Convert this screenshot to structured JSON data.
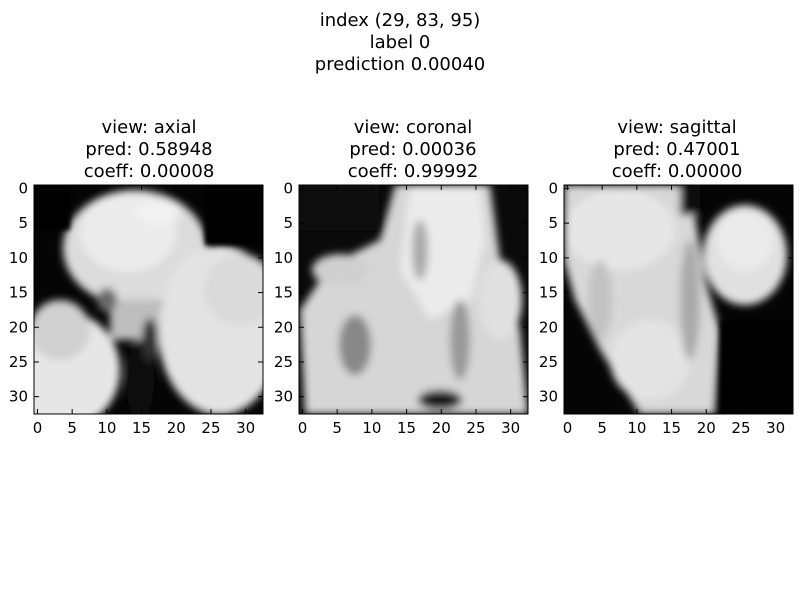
{
  "figure": {
    "title_lines": [
      "index (29, 83, 95)",
      "label 0",
      "prediction 0.00040"
    ]
  },
  "panels": [
    {
      "id": "axial",
      "title_lines": [
        "view: axial",
        "pred: 0.58948",
        "coeff: 0.00008"
      ]
    },
    {
      "id": "coronal",
      "title_lines": [
        "view: coronal",
        "pred: 0.00036",
        "coeff: 0.99992"
      ]
    },
    {
      "id": "sagittal",
      "title_lines": [
        "view: sagittal",
        "pred: 0.47001",
        "coeff: 0.00000"
      ]
    }
  ],
  "axes": {
    "x_ticks": [
      "0",
      "5",
      "10",
      "15",
      "20",
      "25",
      "30"
    ],
    "y_ticks": [
      "0",
      "5",
      "10",
      "15",
      "20",
      "25",
      "30"
    ]
  },
  "colormap": "gray"
}
